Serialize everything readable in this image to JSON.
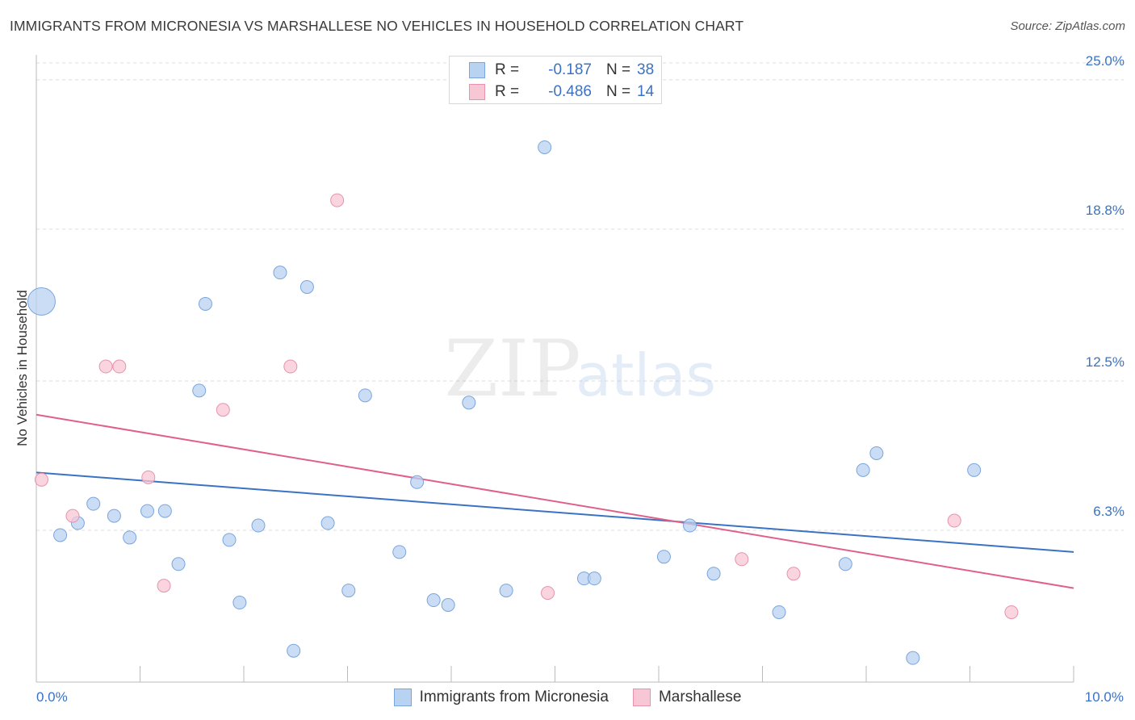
{
  "title": "IMMIGRANTS FROM MICRONESIA VS MARSHALLESE NO VEHICLES IN HOUSEHOLD CORRELATION CHART",
  "source": "Source: ZipAtlas.com",
  "watermark": {
    "zip": "ZIP",
    "atlas": "atlas"
  },
  "legend": {
    "r_label": "R =",
    "n_label": "N =",
    "series": [
      {
        "name": "Immigrants from Micronesia",
        "r": "-0.187",
        "n": "38",
        "fill": "#b8d2f1",
        "stroke": "#7aa5dc"
      },
      {
        "name": "Marshallese",
        "r": "-0.486",
        "n": "14",
        "fill": "#f8c7d5",
        "stroke": "#e693ab"
      }
    ]
  },
  "chart_data": {
    "type": "scatter",
    "title": "IMMIGRANTS FROM MICRONESIA VS MARSHALLESE NO VEHICLES IN HOUSEHOLD CORRELATION CHART",
    "xlabel": "",
    "ylabel": "No Vehicles in Household",
    "xlim": [
      0,
      10
    ],
    "ylim": [
      0,
      25.7
    ],
    "x_tick_labels": [
      {
        "value": 0,
        "label": "0.0%"
      },
      {
        "value": 10,
        "label": "10.0%"
      }
    ],
    "y_tick_labels": [
      {
        "value": 6.3,
        "label": "6.3%"
      },
      {
        "value": 12.5,
        "label": "12.5%"
      },
      {
        "value": 18.8,
        "label": "18.8%"
      },
      {
        "value": 25.0,
        "label": "25.0%"
      }
    ],
    "series": [
      {
        "name": "Immigrants from Micronesia",
        "color": "#3a72c4",
        "trend": {
          "x": [
            0,
            10
          ],
          "y": [
            8.7,
            5.4
          ]
        },
        "points": [
          {
            "x": 0.05,
            "y": 15.8,
            "big": true
          },
          {
            "x": 0.23,
            "y": 6.1
          },
          {
            "x": 0.4,
            "y": 6.6
          },
          {
            "x": 0.55,
            "y": 7.4
          },
          {
            "x": 0.75,
            "y": 6.9
          },
          {
            "x": 0.9,
            "y": 6.0
          },
          {
            "x": 1.07,
            "y": 7.1
          },
          {
            "x": 1.24,
            "y": 7.1
          },
          {
            "x": 1.37,
            "y": 4.9
          },
          {
            "x": 1.57,
            "y": 12.1
          },
          {
            "x": 1.63,
            "y": 15.7
          },
          {
            "x": 1.86,
            "y": 5.9
          },
          {
            "x": 1.96,
            "y": 3.3
          },
          {
            "x": 2.14,
            "y": 6.5
          },
          {
            "x": 2.35,
            "y": 17.0
          },
          {
            "x": 2.48,
            "y": 1.3
          },
          {
            "x": 2.61,
            "y": 16.4
          },
          {
            "x": 2.81,
            "y": 6.6
          },
          {
            "x": 3.01,
            "y": 3.8
          },
          {
            "x": 3.17,
            "y": 11.9
          },
          {
            "x": 3.5,
            "y": 5.4
          },
          {
            "x": 3.67,
            "y": 8.3
          },
          {
            "x": 3.83,
            "y": 3.4
          },
          {
            "x": 3.97,
            "y": 3.2
          },
          {
            "x": 4.17,
            "y": 11.6
          },
          {
            "x": 4.53,
            "y": 3.8
          },
          {
            "x": 4.9,
            "y": 22.2
          },
          {
            "x": 5.28,
            "y": 4.3
          },
          {
            "x": 5.38,
            "y": 4.3
          },
          {
            "x": 6.05,
            "y": 5.2
          },
          {
            "x": 6.3,
            "y": 6.5
          },
          {
            "x": 6.53,
            "y": 4.5
          },
          {
            "x": 7.16,
            "y": 2.9
          },
          {
            "x": 7.8,
            "y": 4.9
          },
          {
            "x": 7.97,
            "y": 8.8
          },
          {
            "x": 8.1,
            "y": 9.5
          },
          {
            "x": 8.45,
            "y": 1.0
          },
          {
            "x": 9.04,
            "y": 8.8
          }
        ]
      },
      {
        "name": "Marshallese",
        "color": "#e0608a",
        "trend": {
          "x": [
            0,
            10
          ],
          "y": [
            11.1,
            3.9
          ]
        },
        "points": [
          {
            "x": 0.05,
            "y": 8.4
          },
          {
            "x": 0.35,
            "y": 6.9
          },
          {
            "x": 0.67,
            "y": 13.1
          },
          {
            "x": 0.8,
            "y": 13.1
          },
          {
            "x": 1.08,
            "y": 8.5
          },
          {
            "x": 1.23,
            "y": 4.0
          },
          {
            "x": 1.8,
            "y": 11.3
          },
          {
            "x": 2.45,
            "y": 13.1
          },
          {
            "x": 2.9,
            "y": 20.0
          },
          {
            "x": 4.93,
            "y": 3.7
          },
          {
            "x": 6.8,
            "y": 5.1
          },
          {
            "x": 7.3,
            "y": 4.5
          },
          {
            "x": 8.85,
            "y": 6.7
          },
          {
            "x": 9.4,
            "y": 2.9
          }
        ]
      }
    ]
  }
}
